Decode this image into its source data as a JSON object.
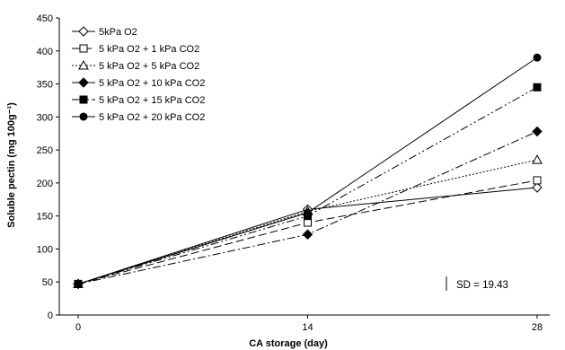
{
  "chart_data": {
    "type": "line",
    "x": [
      0,
      14,
      28
    ],
    "xlabel": "CA storage (day)",
    "ylabel": "Soluble pectin (mg 100g⁻¹)",
    "ylim": [
      0,
      450
    ],
    "yticks": [
      0,
      50,
      100,
      150,
      200,
      250,
      300,
      350,
      400,
      450
    ],
    "xticks": [
      0,
      14,
      28
    ],
    "grid": false,
    "legend_position": "top-left",
    "annotation": "SD = 19.43",
    "series": [
      {
        "name": "5kPa O2",
        "values": [
          47,
          160,
          193
        ],
        "marker": "diamond-open",
        "dash": "solid"
      },
      {
        "name": "5 kPa O2 + 1 kPa CO2",
        "values": [
          47,
          140,
          204
        ],
        "marker": "square-open",
        "dash": "longdash"
      },
      {
        "name": "5 kPa O2 + 5 kPa CO2",
        "values": [
          47,
          157,
          235
        ],
        "marker": "triangle-open",
        "dash": "dotted"
      },
      {
        "name": "5 kPa O2 + 10 kPa CO2",
        "values": [
          47,
          122,
          278
        ],
        "marker": "diamond-filled",
        "dash": "dashdot"
      },
      {
        "name": "5 kPa O2 + 15 kPa CO2",
        "values": [
          47,
          150,
          345
        ],
        "marker": "square-filled",
        "dash": "dashdotdot"
      },
      {
        "name": "5 kPa O2 + 20 kPa CO2",
        "values": [
          47,
          155,
          390
        ],
        "marker": "circle-filled",
        "dash": "solid"
      }
    ]
  }
}
